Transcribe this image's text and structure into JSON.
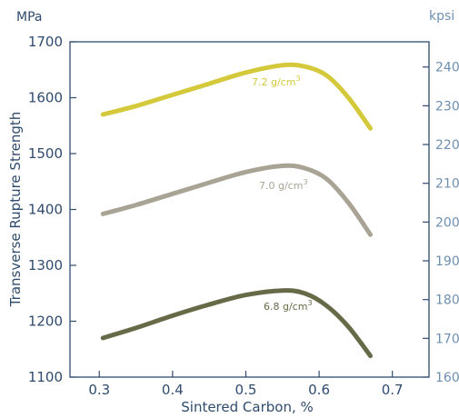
{
  "chart_data": {
    "type": "line",
    "xlabel": "Sintered Carbon, %",
    "ylabel": "Transverse Rupture Strength",
    "y_unit_left": "MPa",
    "y_unit_right": "kpsi",
    "xlim": [
      0.26,
      0.75
    ],
    "ylim": [
      1100,
      1700
    ],
    "y2lim": [
      160,
      246.5
    ],
    "x_ticks": [
      "0.3",
      "0.4",
      "0.5",
      "0.6",
      "0.7"
    ],
    "y_ticks": [
      "1100",
      "1200",
      "1300",
      "1400",
      "1500",
      "1600",
      "1700"
    ],
    "y2_ticks": [
      "160",
      "170",
      "180",
      "190",
      "200",
      "210",
      "220",
      "230",
      "240"
    ],
    "grid": false,
    "series": [
      {
        "name_main": "7.2 g/cm",
        "name_sup": "3",
        "color": "#d4c93a",
        "x": [
          0.305,
          0.35,
          0.4,
          0.45,
          0.5,
          0.55,
          0.58,
          0.61,
          0.64,
          0.67
        ],
        "y": [
          1570,
          1585,
          1605,
          1625,
          1645,
          1658,
          1656,
          1640,
          1600,
          1545
        ]
      },
      {
        "name_main": "7.0 g/cm",
        "name_sup": "3",
        "color": "#a8a394",
        "x": [
          0.305,
          0.35,
          0.4,
          0.45,
          0.5,
          0.55,
          0.58,
          0.61,
          0.64,
          0.67
        ],
        "y": [
          1392,
          1408,
          1428,
          1448,
          1467,
          1478,
          1474,
          1455,
          1412,
          1355
        ]
      },
      {
        "name_main": "6.8 g/cm",
        "name_sup": "3",
        "color": "#676a47",
        "x": [
          0.305,
          0.35,
          0.4,
          0.45,
          0.5,
          0.55,
          0.58,
          0.61,
          0.64,
          0.67
        ],
        "y": [
          1170,
          1188,
          1210,
          1230,
          1247,
          1255,
          1250,
          1228,
          1190,
          1138
        ]
      }
    ]
  }
}
